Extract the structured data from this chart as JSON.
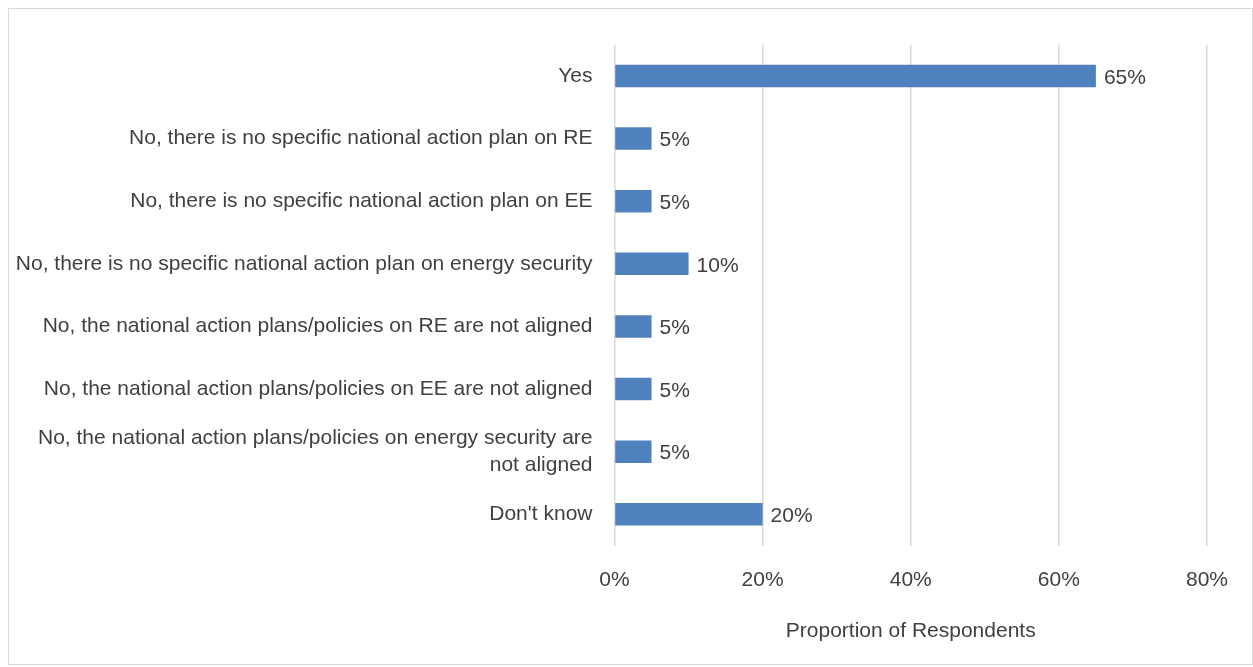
{
  "chart_data": {
    "type": "bar",
    "orientation": "horizontal",
    "categories": [
      "Yes",
      "No, there is no specific national action plan on RE",
      "No, there is no specific national action plan on EE",
      "No, there is no specific national action plan on energy security",
      "No, the national action plans/policies on RE are not aligned",
      "No, the national action plans/policies on EE are not aligned",
      "No, the national action plans/policies on energy security are not aligned",
      "Don't know"
    ],
    "values": [
      65,
      5,
      5,
      10,
      5,
      5,
      5,
      20
    ],
    "value_labels": [
      "65%",
      "5%",
      "5%",
      "10%",
      "5%",
      "5%",
      "5%",
      "20%"
    ],
    "color": "#4f81bd",
    "xlabel": "Proportion of Respondents",
    "xlim": [
      0,
      80
    ],
    "xticks": [
      {
        "value": 0,
        "label": "0%"
      },
      {
        "value": 20,
        "label": "20%"
      },
      {
        "value": 40,
        "label": "40%"
      },
      {
        "value": 60,
        "label": "60%"
      },
      {
        "value": 80,
        "label": "80%"
      }
    ],
    "grid": "x"
  }
}
